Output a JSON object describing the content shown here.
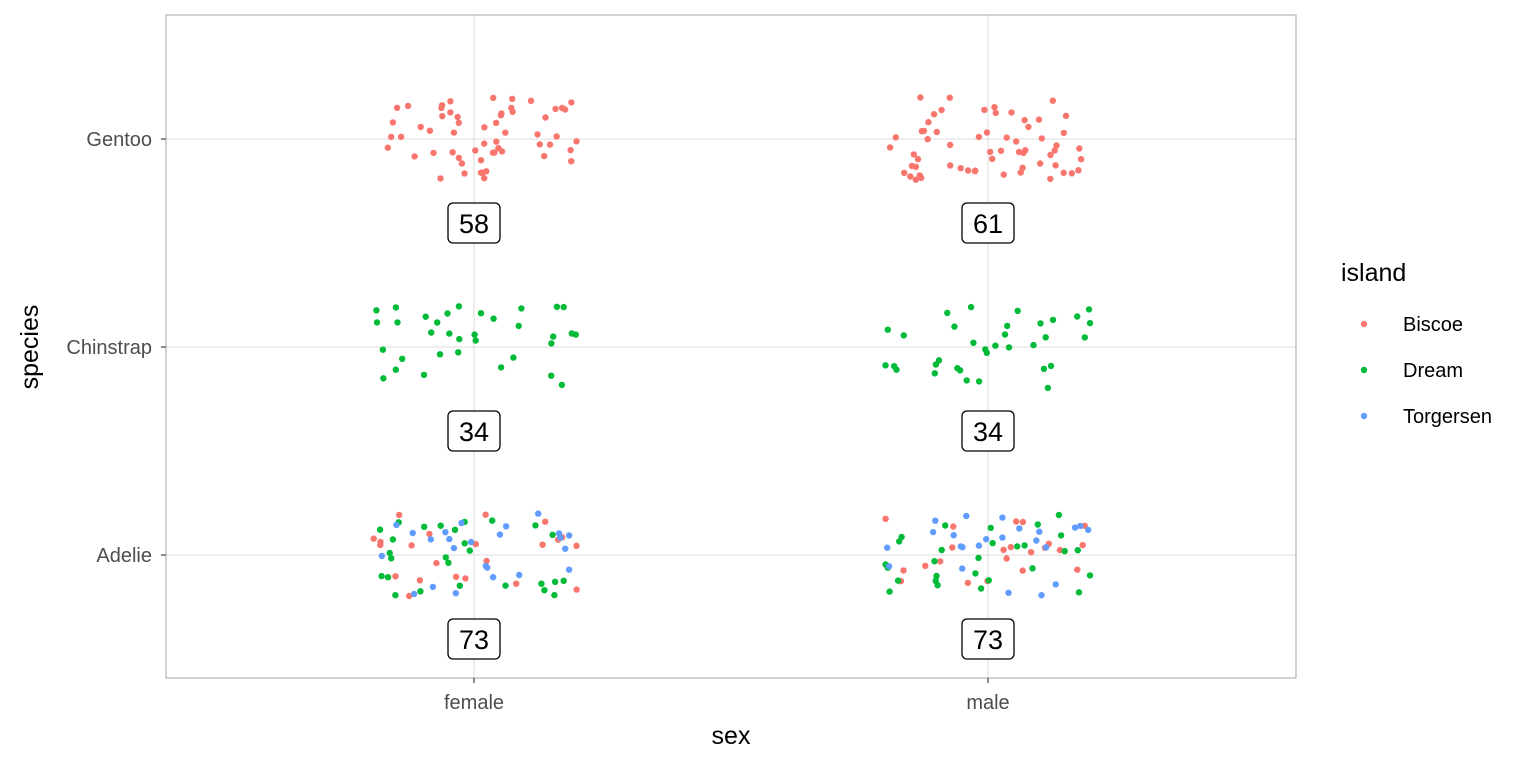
{
  "chart_data": {
    "type": "scatter",
    "subtype": "jittered categorical scatter with count labels",
    "xlabel": "sex",
    "ylabel": "species",
    "x_categories": [
      "female",
      "male"
    ],
    "y_categories": [
      "Adelie",
      "Chinstrap",
      "Gentoo"
    ],
    "grid": true,
    "legend": {
      "title": "island",
      "position": "right",
      "entries": [
        {
          "name": "Biscoe",
          "color": "#F8766D"
        },
        {
          "name": "Dream",
          "color": "#00BA38"
        },
        {
          "name": "Torgersen",
          "color": "#619CFF"
        }
      ]
    },
    "counts": [
      {
        "sex": "female",
        "species": "Gentoo",
        "count": "58"
      },
      {
        "sex": "male",
        "species": "Gentoo",
        "count": "61"
      },
      {
        "sex": "female",
        "species": "Chinstrap",
        "count": "34"
      },
      {
        "sex": "male",
        "species": "Chinstrap",
        "count": "34"
      },
      {
        "sex": "female",
        "species": "Adelie",
        "count": "73"
      },
      {
        "sex": "male",
        "species": "Adelie",
        "count": "73"
      }
    ],
    "groups": [
      {
        "sex": "female",
        "species": "Gentoo",
        "island_counts": {
          "Biscoe": 58
        }
      },
      {
        "sex": "male",
        "species": "Gentoo",
        "island_counts": {
          "Biscoe": 61
        }
      },
      {
        "sex": "female",
        "species": "Chinstrap",
        "island_counts": {
          "Dream": 34
        }
      },
      {
        "sex": "male",
        "species": "Chinstrap",
        "island_counts": {
          "Dream": 34
        }
      },
      {
        "sex": "female",
        "species": "Adelie",
        "island_counts": {
          "Biscoe": 22,
          "Dream": 27,
          "Torgersen": 24
        }
      },
      {
        "sex": "male",
        "species": "Adelie",
        "island_counts": {
          "Biscoe": 22,
          "Dream": 28,
          "Torgersen": 23
        }
      }
    ],
    "jitter": {
      "x": 0.2,
      "y": 0.2
    }
  }
}
